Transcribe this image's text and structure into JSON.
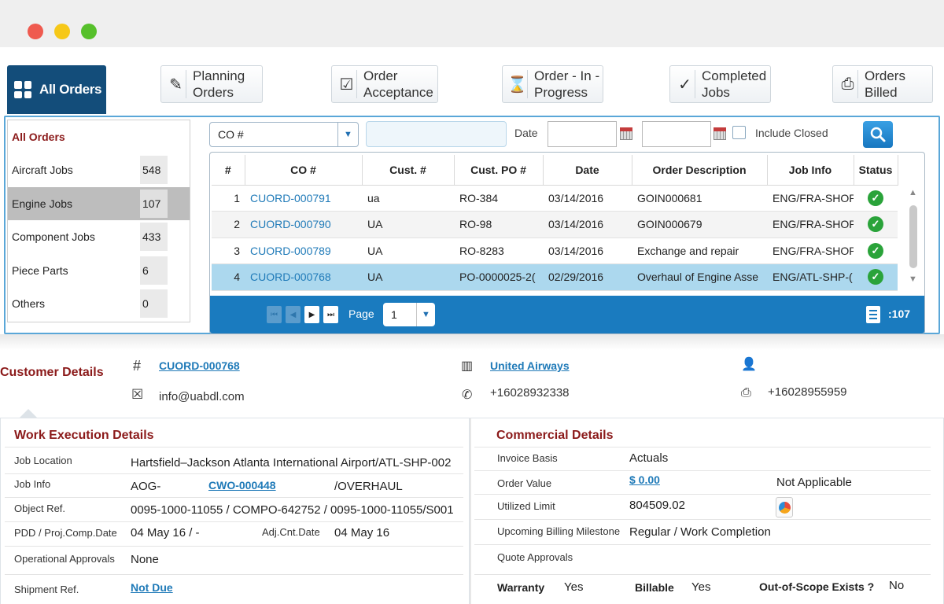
{
  "tabs": {
    "active": {
      "label": "All Orders"
    },
    "items": [
      {
        "label1": "Planning",
        "label2": "Orders"
      },
      {
        "label1": "Order",
        "label2": "Acceptance"
      },
      {
        "label1": "Order - In -",
        "label2": "Progress"
      },
      {
        "label1": "Completed",
        "label2": "Jobs"
      },
      {
        "label1": "Orders",
        "label2": "Billed"
      }
    ]
  },
  "sidebar": {
    "header": "All Orders",
    "items": [
      {
        "label": "Aircraft Jobs",
        "count": "548"
      },
      {
        "label": "Engine Jobs",
        "count": "107"
      },
      {
        "label": "Component Jobs",
        "count": "433"
      },
      {
        "label": "Piece Parts",
        "count": "6"
      },
      {
        "label": "Others",
        "count": "0"
      }
    ]
  },
  "filter": {
    "field": "CO #",
    "date_label": "Date",
    "include_closed": "Include Closed"
  },
  "table": {
    "columns": [
      "#",
      "CO #",
      "Cust. #",
      "Cust. PO #",
      "Date",
      "Order Description",
      "Job Info",
      "Status"
    ],
    "rows": [
      {
        "n": "1",
        "co": "CUORD-000791",
        "cust": "ua",
        "po": "RO-384",
        "date": "03/14/2016",
        "desc": "GOIN000681",
        "job": "ENG/FRA-SHOP"
      },
      {
        "n": "2",
        "co": "CUORD-000790",
        "cust": "UA",
        "po": "RO-98",
        "date": "03/14/2016",
        "desc": "GOIN000679",
        "job": "ENG/FRA-SHOP"
      },
      {
        "n": "3",
        "co": "CUORD-000789",
        "cust": "UA",
        "po": "RO-8283",
        "date": "03/14/2016",
        "desc": "Exchange and repair",
        "job": "ENG/FRA-SHOP"
      },
      {
        "n": "4",
        "co": "CUORD-000768",
        "cust": "UA",
        "po": "PO-0000025-2(",
        "date": "02/29/2016",
        "desc": "Overhaul of Engine Asse",
        "job": "ENG/ATL-SHP-("
      }
    ],
    "status_icon": "check-circle-icon",
    "selected_row": 4
  },
  "pager": {
    "page_label": "Page",
    "page": "1",
    "records": ":107"
  },
  "customer": {
    "title": "Customer Details",
    "order": "CUORD-000768",
    "company": "United Airways",
    "email": "info@uabdl.com",
    "phone": "+16028932338",
    "fax": "+16028955959"
  },
  "work": {
    "title": "Work Execution Details",
    "job_location_label": "Job Location",
    "job_location": "Hartsfield–Jackson Atlanta International Airport/ATL-SHP-002",
    "job_info_label": "Job Info",
    "job_info_prefix": "AOG-",
    "job_info_link": "CWO-000448",
    "job_info_suffix": "/OVERHAUL",
    "object_ref_label": "Object Ref.",
    "object_ref": "0095-1000-11055 / COMPO-642752 / 0095-1000-11055/S001",
    "pdd_label": "PDD / Proj.Comp.Date",
    "pdd": "04 May 16 / -",
    "adj_label": "Adj.Cnt.Date",
    "adj": "04 May 16",
    "approvals_label": "Operational Approvals",
    "approvals": "None",
    "shipment_label": "Shipment Ref.",
    "shipment": "Not Due"
  },
  "commercial": {
    "title": "Commercial Details",
    "invoice_label": "Invoice Basis",
    "invoice": "Actuals",
    "order_value_label": "Order Value",
    "order_value": "$ 0.00",
    "order_value_note": "Not Applicable",
    "utilized_label": "Utilized Limit",
    "utilized": "804509.02",
    "milestone_label": "Upcoming Billing Milestone",
    "milestone": "Regular / Work Completion",
    "quote_label": "Quote Approvals",
    "warranty_label": "Warranty",
    "warranty": "Yes",
    "billable_label": "Billable",
    "billable": "Yes",
    "oos_label": "Out-of-Scope Exists ?",
    "oos": "No"
  }
}
